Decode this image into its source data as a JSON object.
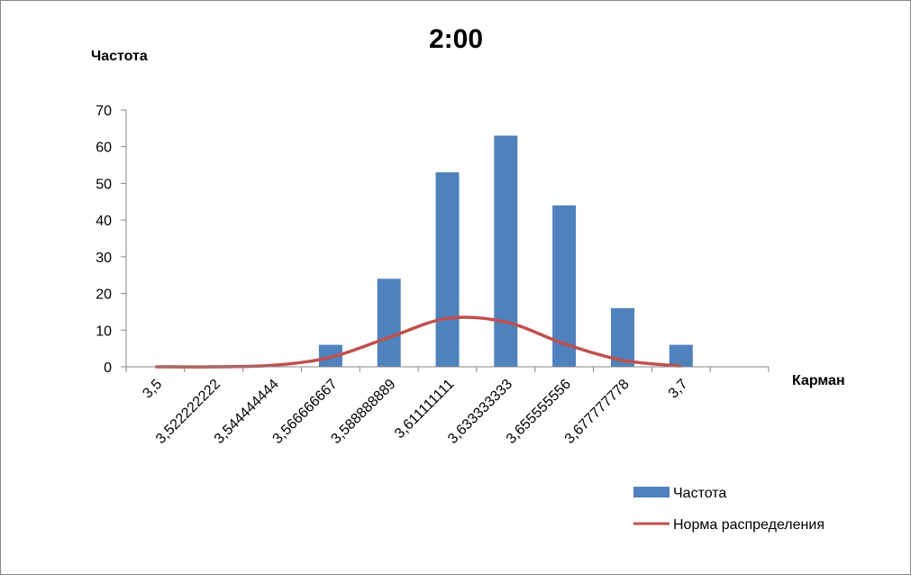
{
  "chart_data": {
    "type": "bar",
    "title": "2:00",
    "ylabel": "Частота",
    "xlabel": "Карман",
    "categories": [
      "3,5",
      "3,522222222",
      "3,544444444",
      "3,566666667",
      "3,588888889",
      "3,611111111",
      "3,633333333",
      "3,655555556",
      "3,677777778",
      "3,7",
      ""
    ],
    "ylim": [
      0,
      70
    ],
    "yticks": [
      "0",
      "10",
      "20",
      "30",
      "40",
      "50",
      "60",
      "70"
    ],
    "grid": false,
    "legend_position": "bottom-right",
    "series": [
      {
        "name": "Частота",
        "type": "bar",
        "color": "#4F81BD",
        "values": [
          0,
          0,
          0,
          6,
          24,
          53,
          63,
          44,
          16,
          6,
          null
        ]
      },
      {
        "name": "Норма распределения",
        "type": "line",
        "color": "#C0504D",
        "values": [
          0.0,
          0.0,
          0.4,
          2.6,
          8.0,
          13.2,
          12.2,
          6.3,
          1.8,
          0.2,
          null
        ]
      }
    ]
  }
}
